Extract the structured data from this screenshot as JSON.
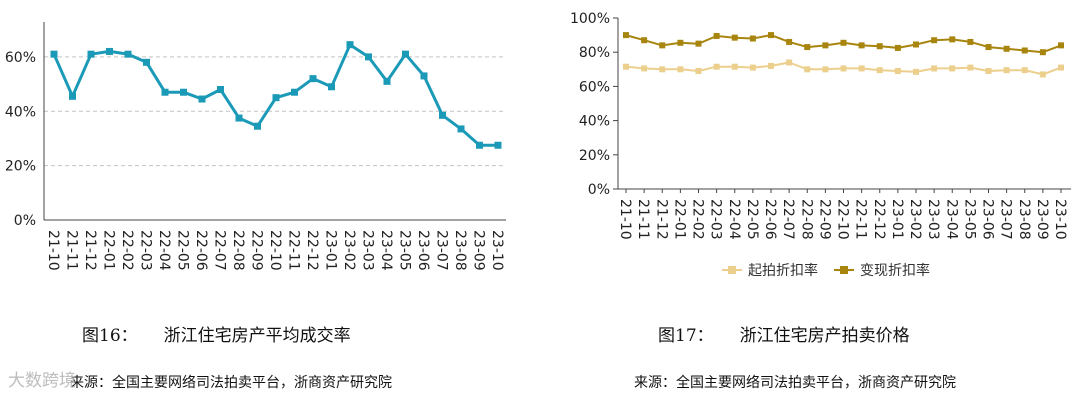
{
  "figure_left": {
    "caption_number": "图16：",
    "caption_title": "浙江住宅房产平均成交率",
    "source": "来源：全国主要网络司法拍卖平台，浙商资产研究院"
  },
  "figure_right": {
    "caption_number": "图17：",
    "caption_title": "浙江住宅房产拍卖价格",
    "source": "来源：全国主要网络司法拍卖平台，浙商资产研究院"
  },
  "watermark": "大数跨境",
  "colors": {
    "line_left": "#1b9ab8",
    "series_start": "#eccf8c",
    "series_realize": "#a8850f"
  },
  "chart_data": [
    {
      "type": "line",
      "title": "",
      "xlabel": "",
      "ylabel": "",
      "categories": [
        "21-10",
        "21-11",
        "21-12",
        "22-01",
        "22-02",
        "22-03",
        "22-04",
        "22-05",
        "22-06",
        "22-07",
        "22-08",
        "22-09",
        "22-10",
        "22-11",
        "22-12",
        "23-01",
        "23-02",
        "23-03",
        "23-04",
        "23-05",
        "23-06",
        "23-07",
        "23-08",
        "23-09",
        "23-10"
      ],
      "series": [
        {
          "name": "",
          "color": "#1b9ab8",
          "values": [
            61,
            45.5,
            61,
            62,
            61,
            58,
            47,
            47,
            44.5,
            48,
            37.5,
            34.5,
            45,
            47,
            52,
            49,
            64.5,
            60,
            51,
            61,
            53,
            38.5,
            33.5,
            27.5,
            27.5
          ]
        }
      ],
      "yticks": [
        "0%",
        "20%",
        "40%",
        "60%"
      ],
      "ylim": [
        0,
        70
      ],
      "grid": true,
      "legend": "none"
    },
    {
      "type": "line",
      "title": "",
      "xlabel": "",
      "ylabel": "",
      "categories": [
        "21-10",
        "21-11",
        "21-12",
        "22-01",
        "22-02",
        "22-03",
        "22-04",
        "22-05",
        "22-06",
        "22-07",
        "22-08",
        "22-09",
        "22-10",
        "22-11",
        "22-12",
        "23-01",
        "23-02",
        "23-03",
        "23-04",
        "23-05",
        "23-06",
        "23-07",
        "23-08",
        "23-09",
        "23-10"
      ],
      "series": [
        {
          "name": "起拍折扣率",
          "color": "#eccf8c",
          "values": [
            71.5,
            70.5,
            70,
            70,
            69,
            71.5,
            71.5,
            71,
            72,
            74,
            70,
            70,
            70.5,
            70.5,
            69.5,
            69,
            68.5,
            70.5,
            70.5,
            71,
            69,
            69.5,
            69.5,
            67,
            71
          ]
        },
        {
          "name": "变现折扣率",
          "color": "#a8850f",
          "values": [
            90,
            87,
            84,
            85.5,
            85,
            89.5,
            88.5,
            88,
            90,
            86,
            83,
            84,
            85.5,
            84,
            83.5,
            82.5,
            84.5,
            87,
            87.5,
            86,
            83,
            82,
            81,
            80,
            84
          ]
        }
      ],
      "yticks": [
        "0%",
        "20%",
        "40%",
        "60%",
        "80%",
        "100%"
      ],
      "ylim": [
        0,
        100
      ],
      "grid": false,
      "legend": "bottom"
    }
  ]
}
